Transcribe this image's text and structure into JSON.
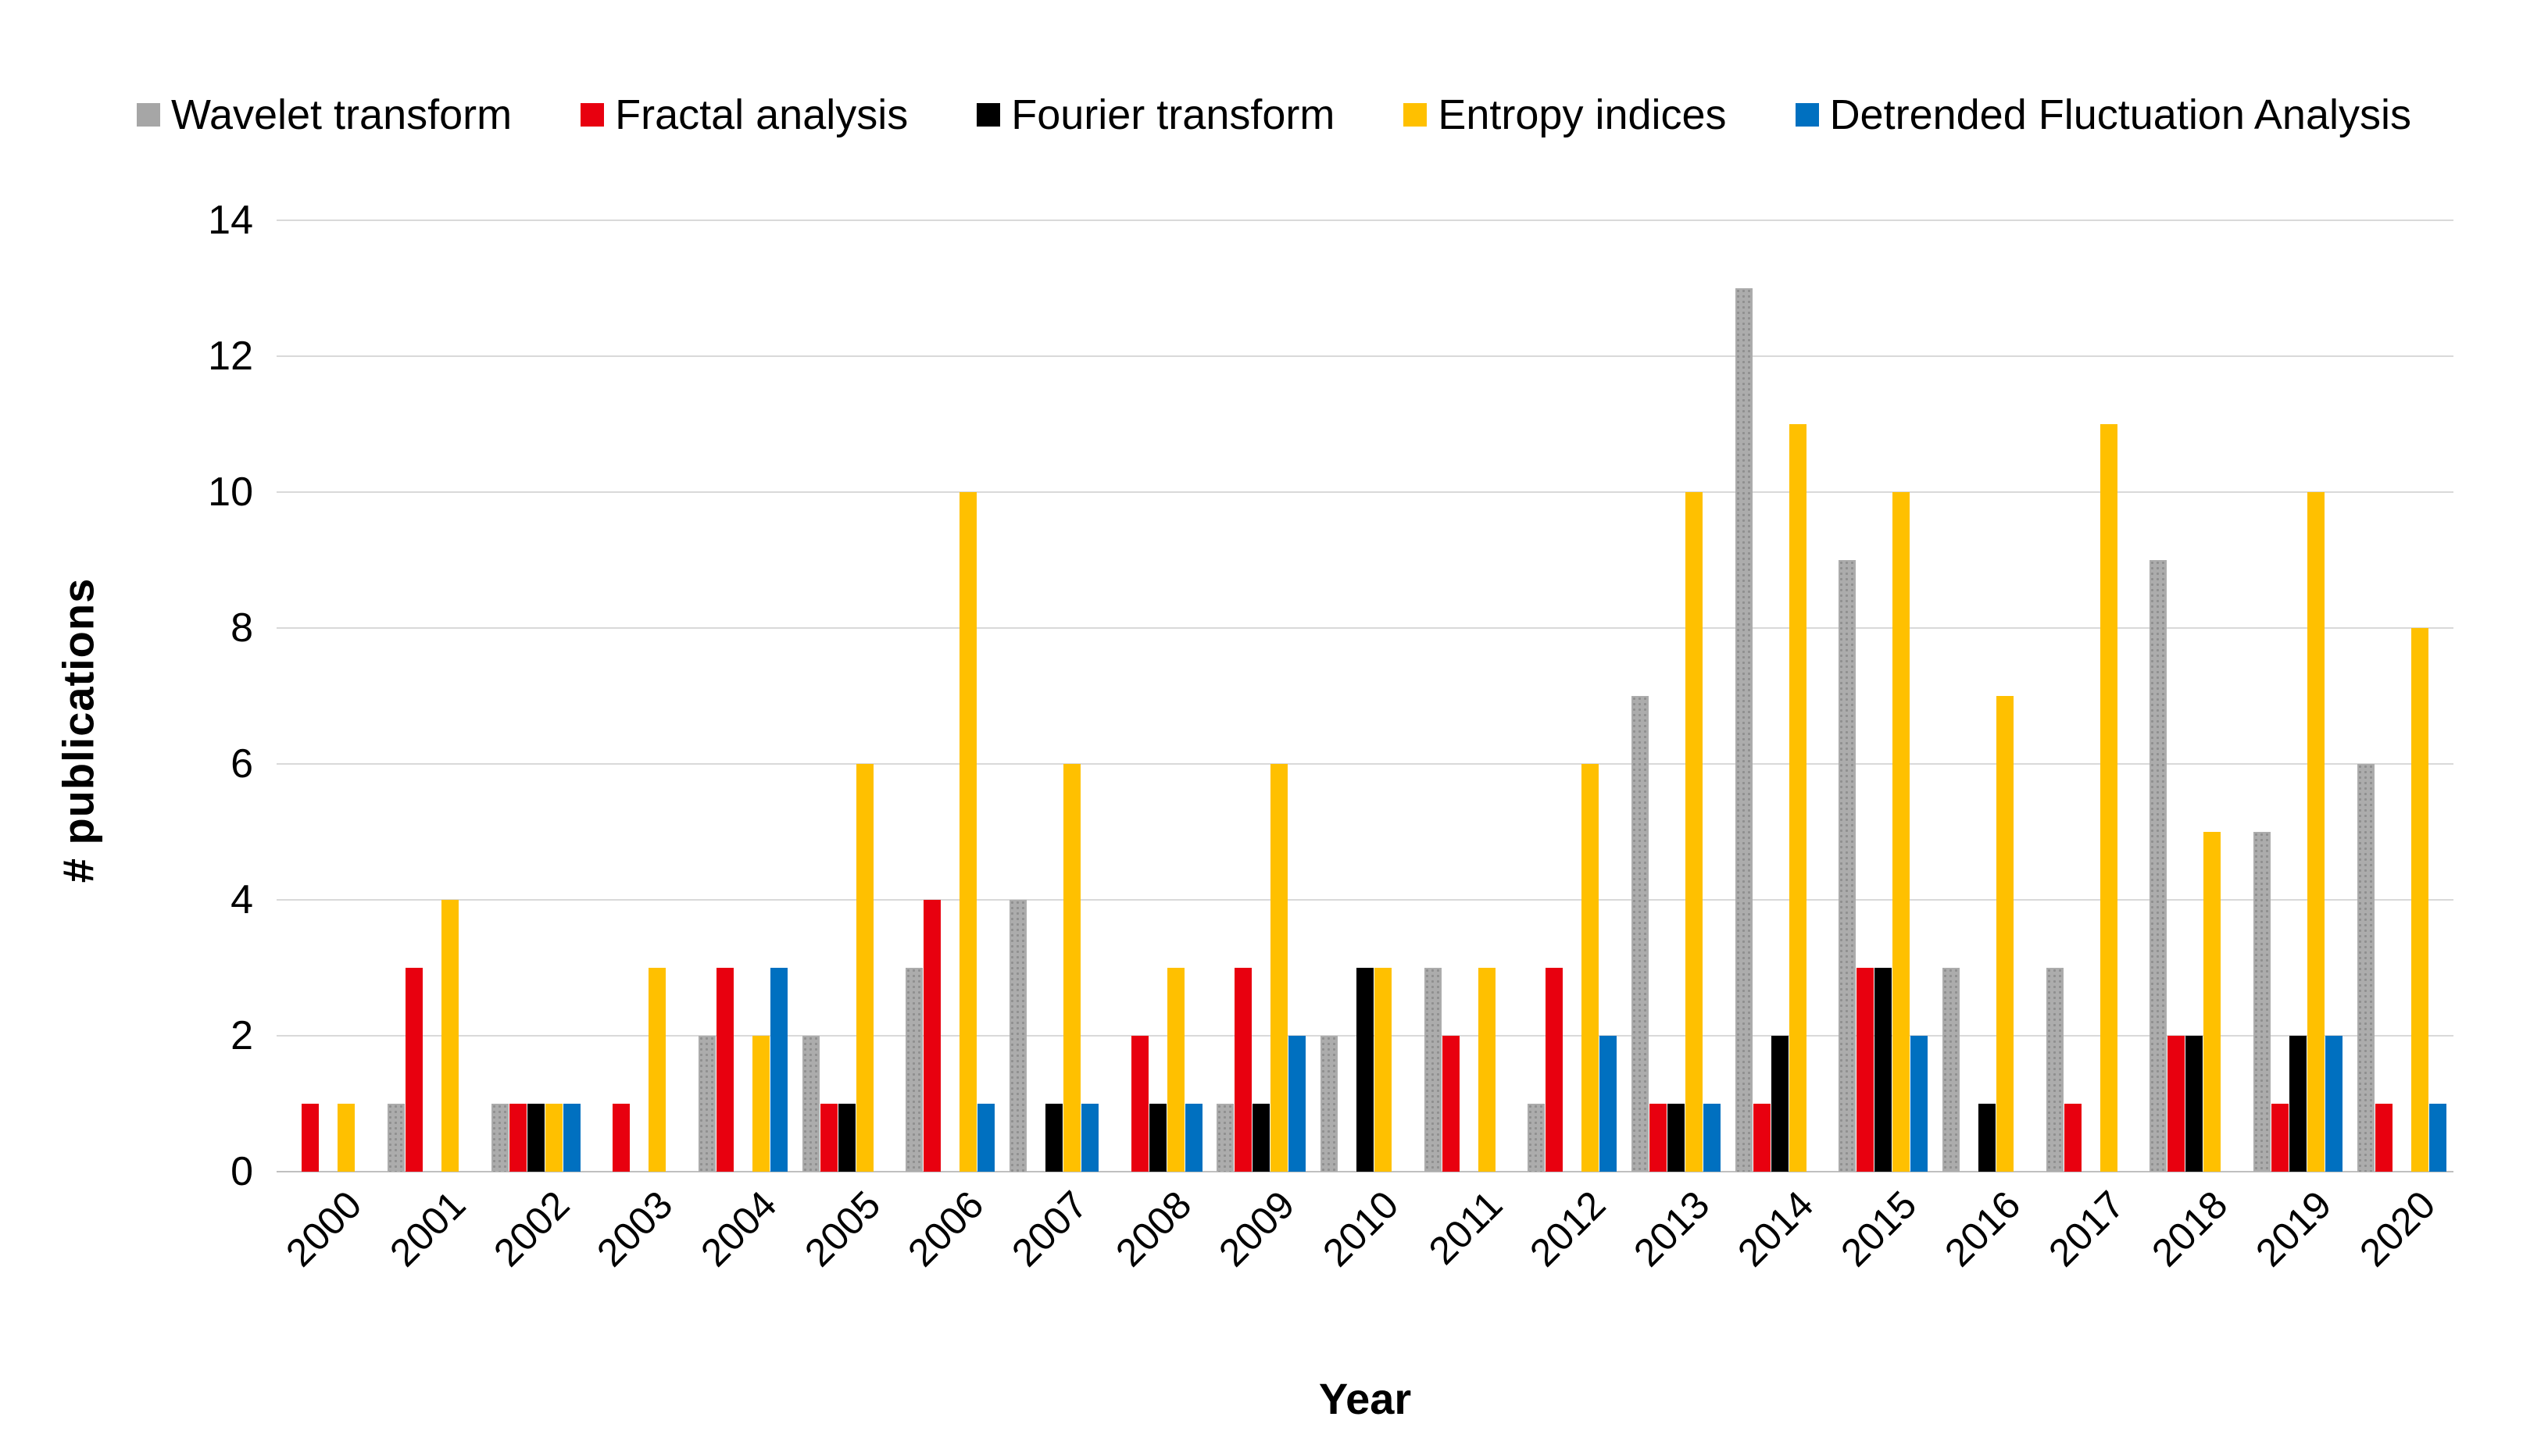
{
  "legend": {
    "items": [
      {
        "label": "Wavelet transform",
        "color": "#A6A6A6"
      },
      {
        "label": "Fractal analysis",
        "color": "#E8000F"
      },
      {
        "label": "Fourier transform",
        "color": "#000000"
      },
      {
        "label": "Entropy indices",
        "color": "#FFC000"
      },
      {
        "label": "Detrended Fluctuation Analysis",
        "color": "#0070C0"
      }
    ]
  },
  "y_axis": {
    "title": "# publications",
    "ticks": [
      0,
      2,
      4,
      6,
      8,
      10,
      12,
      14
    ],
    "max": 14
  },
  "x_axis": {
    "title": "Year"
  },
  "colors": {
    "gridline": "#D9D9D9",
    "axis_line": "#C0C0C0",
    "text": "#000000",
    "background": "#FFFFFF"
  },
  "chart_data": {
    "type": "bar",
    "title": "",
    "categories": [
      "2000",
      "2001",
      "2002",
      "2003",
      "2004",
      "2005",
      "2006",
      "2007",
      "2008",
      "2009",
      "2010",
      "2011",
      "2012",
      "2013",
      "2014",
      "2015",
      "2016",
      "2017",
      "2018",
      "2019",
      "2020"
    ],
    "series": [
      {
        "name": "Wavelet transform",
        "color": "#A6A6A6",
        "values": [
          0,
          1,
          1,
          0,
          2,
          2,
          3,
          4,
          0,
          1,
          2,
          3,
          1,
          7,
          13,
          9,
          3,
          3,
          9,
          5,
          6
        ]
      },
      {
        "name": "Fractal analysis",
        "color": "#E8000F",
        "values": [
          1,
          3,
          1,
          1,
          3,
          1,
          4,
          0,
          2,
          3,
          0,
          2,
          3,
          1,
          1,
          3,
          0,
          1,
          2,
          1,
          1
        ]
      },
      {
        "name": "Fourier transform",
        "color": "#000000",
        "values": [
          0,
          0,
          1,
          0,
          0,
          1,
          0,
          1,
          1,
          1,
          3,
          0,
          0,
          1,
          2,
          3,
          1,
          0,
          2,
          2,
          0
        ]
      },
      {
        "name": "Entropy indices",
        "color": "#FFC000",
        "values": [
          1,
          4,
          1,
          3,
          2,
          6,
          10,
          6,
          3,
          6,
          3,
          3,
          6,
          10,
          11,
          10,
          7,
          11,
          5,
          10,
          8
        ]
      },
      {
        "name": "Detrended Fluctuation Analysis",
        "color": "#0070C0",
        "values": [
          0,
          0,
          1,
          0,
          3,
          0,
          1,
          1,
          1,
          2,
          0,
          0,
          2,
          1,
          0,
          2,
          0,
          0,
          0,
          2,
          1
        ]
      }
    ],
    "ylim": [
      0,
      14
    ],
    "ylabel": "# publications",
    "xlabel": "Year",
    "grid": true,
    "legend_position": "top"
  }
}
